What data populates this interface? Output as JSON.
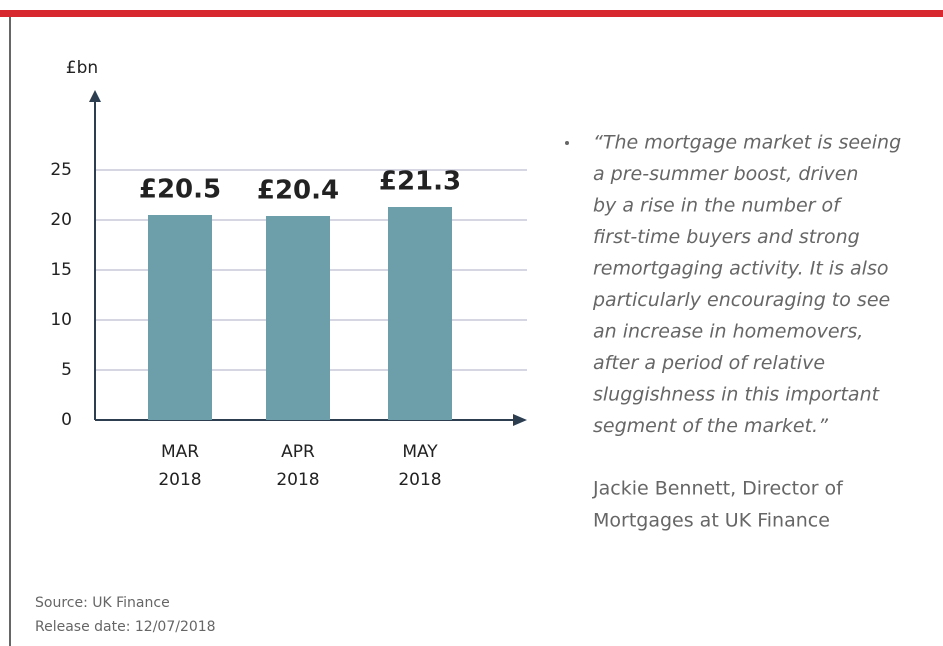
{
  "chart_data": {
    "type": "bar",
    "y_label": "£bn",
    "categories": [
      "MAR 2018",
      "APR 2018",
      "MAY 2018"
    ],
    "values": [
      20.5,
      20.4,
      21.3
    ],
    "value_labels": [
      "£20.5",
      "£20.4",
      "£21.3"
    ],
    "color": "#6d9fab",
    "ylim": [
      0,
      33
    ],
    "yticks": [
      0,
      5,
      10,
      15,
      20,
      25
    ],
    "grid": true
  },
  "quote": {
    "lines": [
      "“The mortgage market is seeing",
      "a pre-summer boost, driven",
      "by a rise in the number of",
      "first-time buyers and strong",
      "remortgaging activity. It is also",
      "particularly encouraging to see",
      "an increase in homemovers,",
      "after a period of relative",
      "sluggishness in this important",
      "segment of the market.”"
    ],
    "author": [
      "Jackie Bennett, Director of",
      "Mortgages at UK Finance"
    ]
  },
  "footer": {
    "source": "Source: UK Finance",
    "release_date": "Release date: 12/07/2018"
  }
}
